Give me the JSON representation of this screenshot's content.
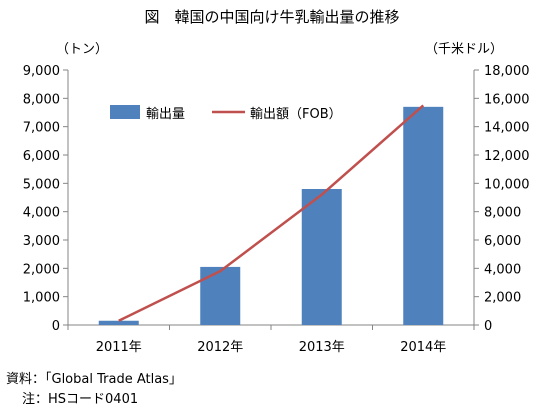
{
  "chart_data": {
    "type": "bar",
    "title": "図　韓国の中国向け牛乳輸出量の推移",
    "categories": [
      "2011年",
      "2012年",
      "2013年",
      "2014年"
    ],
    "ylim_left": [
      0,
      9000
    ],
    "ylim_right": [
      0,
      18000
    ],
    "y_ticks_left": [
      "0",
      "1,000",
      "2,000",
      "3,000",
      "4,000",
      "5,000",
      "6,000",
      "7,000",
      "8,000",
      "9,000"
    ],
    "y_ticks_right": [
      "0",
      "2,000",
      "4,000",
      "6,000",
      "8,000",
      "10,000",
      "12,000",
      "14,000",
      "16,000",
      "18,000"
    ],
    "ylabel_left": "（トン）",
    "ylabel_right": "（千米ドル）",
    "grid": false,
    "legend_position": "top-left inside",
    "series": [
      {
        "name": "輸出量",
        "type": "bar",
        "axis": "left",
        "color": "#4f81bd",
        "values": [
          150,
          2050,
          4800,
          7700
        ]
      },
      {
        "name": "輸出額（FOB）",
        "type": "line",
        "axis": "right",
        "color": "#c0504d",
        "values": [
          300,
          3800,
          9200,
          15500
        ]
      }
    ]
  },
  "notes": {
    "source": "資料：「Global Trade Atlas」",
    "footnote": "注：HSコード0401"
  }
}
